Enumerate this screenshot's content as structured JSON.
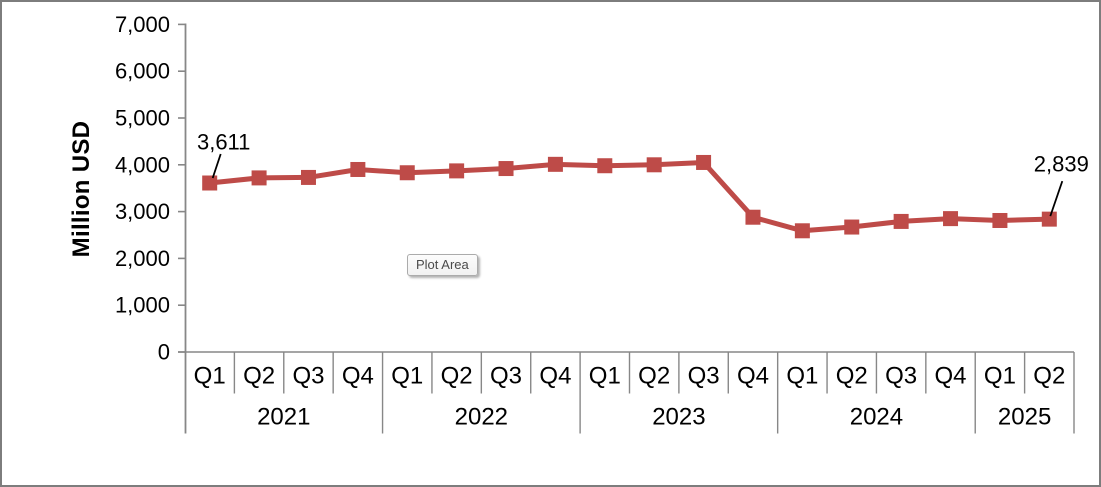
{
  "window": {
    "background": "#ffffff",
    "border_color": "#7d7d7d"
  },
  "tooltip": {
    "label": "Plot Area"
  },
  "chart_data": {
    "type": "line",
    "title": "",
    "xlabel": "",
    "ylabel": "Million USD",
    "ylim": [
      0,
      7000
    ],
    "ytick_step": 1000,
    "ytick_labels": [
      "0",
      "1,000",
      "2,000",
      "3,000",
      "4,000",
      "5,000",
      "6,000",
      "7,000"
    ],
    "grid": false,
    "legend": "none",
    "categories": [
      "Q1",
      "Q2",
      "Q3",
      "Q4",
      "Q1",
      "Q2",
      "Q3",
      "Q4",
      "Q1",
      "Q2",
      "Q3",
      "Q4",
      "Q1",
      "Q2",
      "Q3",
      "Q4",
      "Q1",
      "Q2"
    ],
    "year_groups": [
      {
        "label": "2021",
        "span": 4
      },
      {
        "label": "2022",
        "span": 4
      },
      {
        "label": "2023",
        "span": 4
      },
      {
        "label": "2024",
        "span": 4
      },
      {
        "label": "2025",
        "span": 2
      }
    ],
    "series": [
      {
        "color": "#be4b48",
        "marker": "square",
        "values": [
          3611,
          3720,
          3730,
          3900,
          3830,
          3870,
          3920,
          4010,
          3980,
          4000,
          4050,
          2880,
          2590,
          2670,
          2790,
          2850,
          2810,
          2839
        ]
      }
    ],
    "data_labels": [
      {
        "index": 0,
        "text": "3,611",
        "side": "left"
      },
      {
        "index": 17,
        "text": "2,839",
        "side": "right"
      }
    ],
    "colors": {
      "axis_line": "#878787",
      "text": "#000000"
    }
  }
}
